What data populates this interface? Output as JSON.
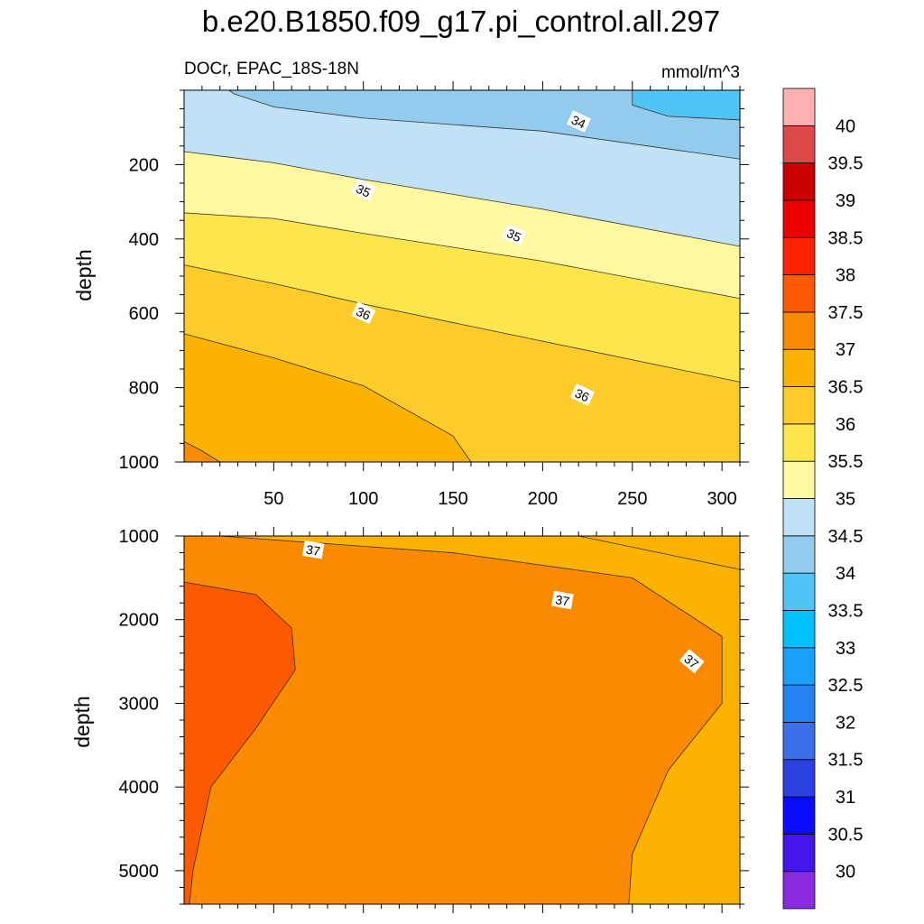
{
  "chart_data": {
    "type": "contour",
    "title": "b.e20.B1850.f09_g17.pi_control.all.297",
    "left_subtitle": "DOCr, EPAC_18S-18N",
    "right_subtitle": "mmol/m^3",
    "colorbar": {
      "levels": [
        "30",
        "30.5",
        "31",
        "31.5",
        "32",
        "32.5",
        "33",
        "33.5",
        "34",
        "34.5",
        "35",
        "35.5",
        "36",
        "36.5",
        "37",
        "37.5",
        "38",
        "38.5",
        "39",
        "39.5",
        "40"
      ],
      "colors": [
        "#8a2be2",
        "#4416ea",
        "#0a0aff",
        "#2a40e0",
        "#3a6fe8",
        "#2483f0",
        "#1aa0fb",
        "#00c0ff",
        "#50c4f5",
        "#92cbeb",
        "#bfe3f5",
        "#fff8a0",
        "#fde54c",
        "#fdcc2a",
        "#fcb300",
        "#fc8a00",
        "#fd5a00",
        "#ff2400",
        "#ee0000",
        "#cc0000",
        "#dd4848",
        "#ffb0b0"
      ]
    },
    "panels": [
      {
        "name": "upper",
        "ylabel": "depth",
        "xlim": [
          0,
          310
        ],
        "ylim": [
          1000,
          0
        ],
        "xticks": [
          50,
          100,
          150,
          200,
          250,
          300
        ],
        "yticks": [
          200,
          400,
          600,
          800,
          1000
        ],
        "bands": [
          {
            "color": "#50c4f5",
            "value": "33.5-34"
          },
          {
            "color": "#92cbeb",
            "value": "34-34.5"
          },
          {
            "color": "#bfe3f5",
            "value": "34.5-35"
          },
          {
            "color": "#fff8a0",
            "value": "35-35.5"
          },
          {
            "color": "#fde54c",
            "value": "35.5-36"
          },
          {
            "color": "#fdcc2a",
            "value": "36-36.5"
          },
          {
            "color": "#fcb300",
            "value": "36.5-37"
          },
          {
            "color": "#fc8a00",
            "value": "37-37.5"
          }
        ],
        "contour_lines": [
          {
            "level": 34,
            "points": [
              [
                250,
                0
              ],
              [
                250,
                40
              ],
              [
                270,
                70
              ],
              [
                310,
                80
              ]
            ]
          },
          {
            "level": 34.5,
            "points": [
              [
                25,
                0
              ],
              [
                28,
                10
              ],
              [
                50,
                45
              ],
              [
                100,
                75
              ],
              [
                200,
                110
              ],
              [
                310,
                185
              ]
            ]
          },
          {
            "level": 35,
            "points": [
              [
                0,
                165
              ],
              [
                50,
                195
              ],
              [
                100,
                240
              ],
              [
                200,
                320
              ],
              [
                310,
                420
              ]
            ]
          },
          {
            "level": 35.5,
            "points": [
              [
                0,
                330
              ],
              [
                50,
                345
              ],
              [
                100,
                385
              ],
              [
                200,
                460
              ],
              [
                310,
                560
              ]
            ]
          },
          {
            "level": 36,
            "points": [
              [
                0,
                470
              ],
              [
                50,
                520
              ],
              [
                100,
                575
              ],
              [
                200,
                675
              ],
              [
                310,
                785
              ]
            ]
          },
          {
            "level": 36.5,
            "points": [
              [
                0,
                655
              ],
              [
                50,
                720
              ],
              [
                100,
                795
              ],
              [
                150,
                930
              ],
              [
                160,
                1000
              ]
            ]
          },
          {
            "level": 37,
            "points": [
              [
                0,
                945
              ],
              [
                10,
                970
              ],
              [
                20,
                1000
              ]
            ]
          }
        ],
        "labels": [
          {
            "text": "34",
            "x": 220,
            "y": 85
          },
          {
            "text": "35",
            "x": 100,
            "y": 270
          },
          {
            "text": "35",
            "x": 184,
            "y": 390
          },
          {
            "text": "36",
            "x": 100,
            "y": 600
          },
          {
            "text": "36",
            "x": 222,
            "y": 820
          }
        ]
      },
      {
        "name": "lower",
        "ylabel": "depth",
        "xlim": [
          0,
          310
        ],
        "ylim": [
          5400,
          1000
        ],
        "yticks": [
          1000,
          2000,
          3000,
          4000,
          5000
        ],
        "bands": [
          {
            "color": "#fcb300",
            "value": "36.5-37"
          },
          {
            "color": "#fc8a00",
            "value": "37-37.5"
          },
          {
            "color": "#fd5a00",
            "value": "37.5-38"
          }
        ],
        "contour_lines": [
          {
            "level": 37,
            "points": [
              [
                20,
                1000
              ],
              [
                150,
                1200
              ],
              [
                250,
                1500
              ],
              [
                300,
                2200
              ],
              [
                300,
                3000
              ],
              [
                270,
                3800
              ],
              [
                250,
                4800
              ],
              [
                248,
                5400
              ]
            ]
          },
          {
            "level": 37,
            "points": [
              [
                220,
                1000
              ],
              [
                310,
                1400
              ]
            ]
          },
          {
            "level": 37.5,
            "points": [
              [
                0,
                1550
              ],
              [
                40,
                1700
              ],
              [
                60,
                2100
              ],
              [
                62,
                2600
              ],
              [
                40,
                3300
              ],
              [
                15,
                4000
              ],
              [
                5,
                5000
              ],
              [
                3,
                5400
              ]
            ]
          }
        ],
        "labels": [
          {
            "text": "37",
            "x": 72,
            "y": 1170
          },
          {
            "text": "37",
            "x": 211,
            "y": 1770
          },
          {
            "text": "37",
            "x": 283,
            "y": 2500
          }
        ]
      }
    ]
  }
}
